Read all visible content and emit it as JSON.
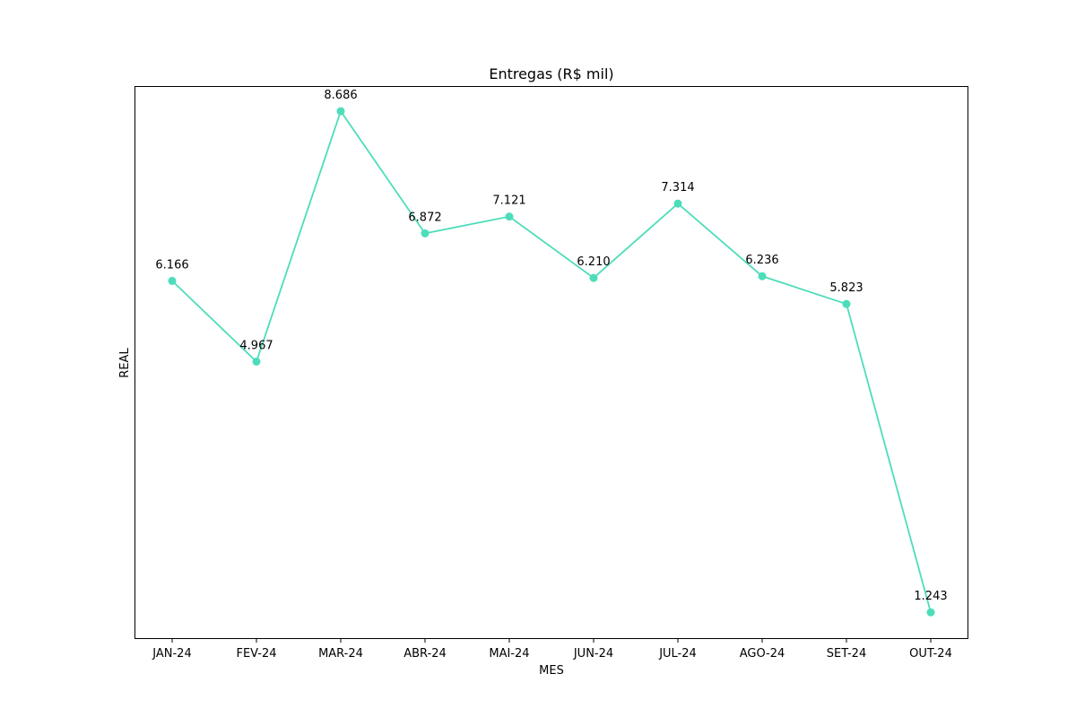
{
  "chart_data": {
    "type": "line",
    "title": "Entregas (R$ mil)",
    "xlabel": "MES",
    "ylabel": "REAL",
    "categories": [
      "JAN-24",
      "FEV-24",
      "MAR-24",
      "ABR-24",
      "MAI-24",
      "JUN-24",
      "JUL-24",
      "AGO-24",
      "SET-24",
      "OUT-24"
    ],
    "values": [
      6.166,
      4.967,
      8.686,
      6.872,
      7.121,
      6.21,
      7.314,
      6.236,
      5.823,
      1.243
    ],
    "value_labels": [
      "6.166",
      "4.967",
      "8.686",
      "6.872",
      "7.121",
      "6.210",
      "7.314",
      "6.236",
      "5.823",
      "1.243"
    ],
    "ylim": [
      0.86,
      9.06
    ],
    "y_ticks_shown": false,
    "grid": false,
    "legend": "none",
    "line_color": "#4dddba",
    "marker": "circle"
  }
}
